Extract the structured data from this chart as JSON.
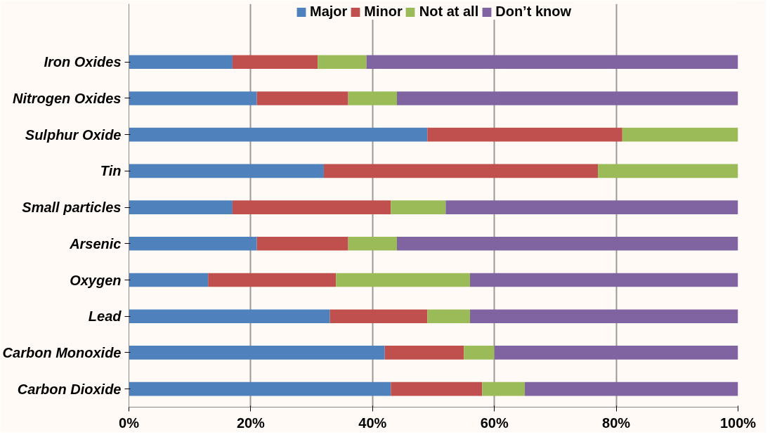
{
  "chart_data": {
    "type": "bar",
    "orientation": "horizontal",
    "stacked": true,
    "categories": [
      "Iron Oxides",
      "Nitrogen Oxides",
      "Sulphur Oxide",
      "Tin",
      "Small particles",
      "Arsenic",
      "Oxygen",
      "Lead",
      "Carbon Monoxide",
      "Carbon Dioxide"
    ],
    "series": [
      {
        "name": "Major",
        "color": "#4f81bd",
        "values": [
          17,
          21,
          49,
          32,
          17,
          21,
          13,
          33,
          42,
          43
        ]
      },
      {
        "name": "Minor",
        "color": "#c0504d",
        "values": [
          14,
          15,
          32,
          45,
          26,
          15,
          21,
          16,
          13,
          15
        ]
      },
      {
        "name": "Not at all",
        "color": "#9bbb59",
        "values": [
          8,
          8,
          19,
          23,
          9,
          8,
          22,
          7,
          5,
          7
        ]
      },
      {
        "name": "Don’t know",
        "color": "#8064a2",
        "values": [
          61,
          56,
          0,
          0,
          48,
          56,
          44,
          44,
          40,
          35
        ]
      }
    ],
    "xlim": [
      0,
      100
    ],
    "xticks": [
      {
        "value": 0,
        "label": "0%"
      },
      {
        "value": 20,
        "label": "20%"
      },
      {
        "value": 40,
        "label": "40%"
      },
      {
        "value": 60,
        "label": "60%"
      },
      {
        "value": 80,
        "label": "80%"
      },
      {
        "value": 100,
        "label": "100%"
      }
    ],
    "grid": "x",
    "legend": "top"
  }
}
